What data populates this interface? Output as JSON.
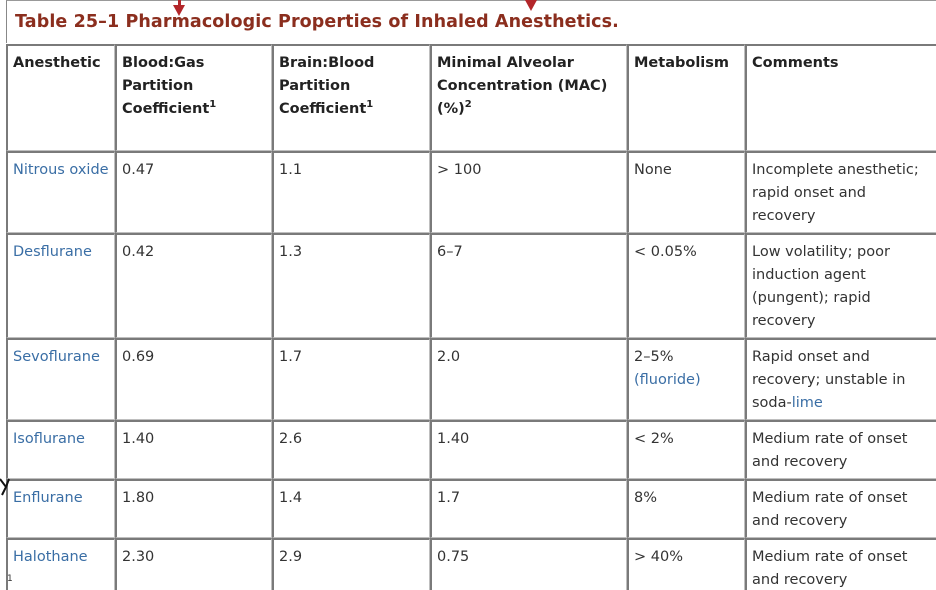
{
  "title": "Table 25–1 Pharmacologic Properties of Inhaled Anesthetics.",
  "accent_color": "#8b2e1e",
  "link_color": "#3a6ea5",
  "headers": {
    "anesthetic": "Anesthetic",
    "blood_gas": "Blood:Gas Partition Coefficient",
    "blood_gas_sup": "1",
    "brain_blood": "Brain:Blood Partition Coefficient",
    "brain_blood_sup": "1",
    "mac": "Minimal Alveolar Concentration (MAC) (%)",
    "mac_sup": "2",
    "metabolism": "Metabolism",
    "comments": "Comments"
  },
  "rows": [
    {
      "name": "Nitrous oxide",
      "blood_gas": "0.47",
      "brain_blood": "1.1",
      "mac": "> 100",
      "metabolism": "None",
      "comments": "Incomplete anesthetic; rapid onset and recovery"
    },
    {
      "name": "Desflurane",
      "blood_gas": "0.42",
      "brain_blood": "1.3",
      "mac": "6–7",
      "metabolism": "< 0.05%",
      "comments": "Low volatility; poor induction agent (pungent); rapid recovery"
    },
    {
      "name": "Sevoflurane",
      "blood_gas": "0.69",
      "brain_blood": "1.7",
      "mac": "2.0",
      "metabolism": "2–5%",
      "metabolism_link": "(fluoride)",
      "comments": "Rapid onset and recovery; unstable in soda-",
      "comments_link": "lime"
    },
    {
      "name": "Isoflurane",
      "blood_gas": "1.40",
      "brain_blood": "2.6",
      "mac": "1.40",
      "metabolism": "< 2%",
      "comments": "Medium rate of onset and recovery"
    },
    {
      "name": "Enflurane",
      "blood_gas": "1.80",
      "brain_blood": "1.4",
      "mac": "1.7",
      "metabolism": "8%",
      "comments": "Medium rate of onset and recovery"
    },
    {
      "name": "Halothane",
      "blood_gas": "2.30",
      "brain_blood": "2.9",
      "mac": "0.75",
      "metabolism": "> 40%",
      "comments": "Medium rate of onset and recovery"
    }
  ],
  "footnote_mark": "1"
}
